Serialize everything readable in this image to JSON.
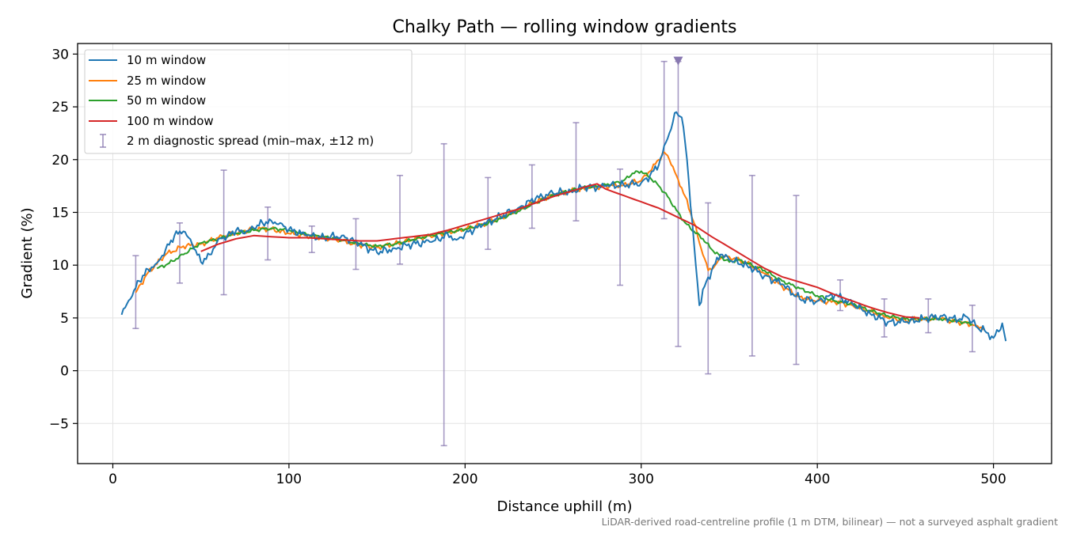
{
  "chart_data": {
    "type": "line",
    "title": "Chalky Path — rolling window gradients",
    "xlabel": "Distance uphill (m)",
    "ylabel": "Gradient (%)",
    "xlim": [
      -20,
      533
    ],
    "ylim": [
      -8.8,
      31
    ],
    "x_ticks": [
      0,
      100,
      200,
      300,
      400,
      500
    ],
    "y_ticks": [
      -5,
      0,
      5,
      10,
      15,
      20,
      25,
      30
    ],
    "grid": true,
    "legend_position": "top-left",
    "footnote": "LiDAR-derived road-centreline profile (1 m DTM, bilinear) — not a surveyed asphalt gradient",
    "marker": {
      "x": 321,
      "y": 29.3,
      "shape": "triangle-down",
      "color": "#8878b0"
    },
    "series": [
      {
        "name": "10 m window",
        "color": "#1f77b4",
        "width": 2.0,
        "jitter": true,
        "x": [
          5,
          10,
          15,
          20,
          25,
          30,
          35,
          40,
          45,
          50,
          55,
          60,
          65,
          70,
          75,
          80,
          85,
          90,
          95,
          100,
          110,
          120,
          130,
          140,
          150,
          160,
          170,
          180,
          185,
          190,
          195,
          200,
          210,
          220,
          230,
          240,
          250,
          260,
          270,
          275,
          280,
          290,
          300,
          305,
          310,
          315,
          320,
          323,
          326,
          330,
          333,
          336,
          340,
          345,
          350,
          360,
          370,
          380,
          390,
          400,
          410,
          420,
          430,
          440,
          450,
          460,
          470,
          480,
          485,
          490,
          495,
          500,
          505,
          507
        ],
        "y": [
          5.3,
          6.8,
          8.5,
          9.6,
          10.2,
          11.5,
          12.8,
          13.2,
          12.0,
          10.3,
          11.0,
          12.5,
          12.8,
          13.3,
          13.0,
          13.5,
          14.0,
          14.2,
          14.0,
          13.4,
          12.8,
          12.6,
          12.8,
          12.0,
          11.2,
          11.6,
          12.0,
          12.2,
          12.4,
          13.0,
          12.4,
          13.0,
          13.8,
          14.6,
          15.4,
          16.3,
          16.8,
          17.0,
          17.5,
          17.3,
          17.5,
          17.6,
          17.8,
          18.5,
          19.5,
          22.0,
          24.5,
          24.0,
          20.0,
          12.0,
          6.2,
          8.0,
          9.5,
          11.0,
          10.5,
          10.0,
          9.0,
          8.2,
          6.8,
          6.6,
          7.2,
          6.3,
          5.4,
          4.6,
          4.6,
          4.9,
          5.2,
          4.8,
          5.1,
          4.2,
          3.8,
          3.1,
          4.5,
          2.8
        ]
      },
      {
        "name": "25 m window",
        "color": "#ff7f0e",
        "width": 2.0,
        "jitter": true,
        "x": [
          13,
          20,
          30,
          40,
          50,
          60,
          70,
          80,
          90,
          100,
          110,
          120,
          130,
          140,
          150,
          160,
          170,
          180,
          190,
          200,
          210,
          220,
          230,
          240,
          250,
          260,
          270,
          280,
          290,
          300,
          305,
          310,
          313,
          316,
          320,
          325,
          330,
          335,
          338,
          342,
          346,
          350,
          360,
          370,
          380,
          390,
          400,
          410,
          420,
          430,
          440,
          450,
          460,
          470,
          480,
          490,
          495
        ],
        "y": [
          7.4,
          9.3,
          11.0,
          11.8,
          12.0,
          12.6,
          13.0,
          13.5,
          13.4,
          13.0,
          12.8,
          12.6,
          12.3,
          11.9,
          11.7,
          12.0,
          12.4,
          12.8,
          13.1,
          13.4,
          13.9,
          14.5,
          15.2,
          16.0,
          16.7,
          17.0,
          17.3,
          17.5,
          17.6,
          18.0,
          18.9,
          20.0,
          20.7,
          20.0,
          18.5,
          16.5,
          14.0,
          11.0,
          9.5,
          10.0,
          10.8,
          10.8,
          10.2,
          9.2,
          8.0,
          7.0,
          6.6,
          6.5,
          6.2,
          5.6,
          5.0,
          4.8,
          4.9,
          4.9,
          4.6,
          4.3,
          4.0
        ]
      },
      {
        "name": "50 m window",
        "color": "#2ca02c",
        "width": 2.0,
        "jitter": true,
        "x": [
          25,
          30,
          40,
          50,
          60,
          70,
          80,
          90,
          100,
          110,
          120,
          130,
          140,
          150,
          160,
          170,
          180,
          190,
          200,
          210,
          220,
          230,
          240,
          250,
          260,
          270,
          280,
          290,
          295,
          300,
          305,
          310,
          315,
          320,
          325,
          330,
          335,
          340,
          345,
          350,
          355,
          360,
          370,
          380,
          390,
          400,
          410,
          420,
          430,
          440,
          450,
          460,
          470,
          480,
          488
        ],
        "y": [
          9.7,
          10.0,
          11.0,
          12.1,
          12.5,
          13.0,
          13.3,
          13.5,
          13.3,
          12.9,
          12.7,
          12.4,
          12.0,
          11.8,
          12.0,
          12.4,
          12.8,
          13.1,
          13.4,
          13.8,
          14.4,
          15.1,
          15.9,
          16.6,
          17.1,
          17.4,
          17.6,
          18.0,
          18.7,
          18.9,
          18.3,
          17.5,
          16.5,
          15.2,
          14.0,
          13.2,
          12.5,
          11.5,
          10.8,
          10.3,
          10.5,
          10.2,
          9.5,
          8.5,
          7.8,
          7.1,
          6.6,
          6.3,
          5.7,
          5.2,
          4.9,
          4.9,
          4.9,
          4.7,
          4.4
        ]
      },
      {
        "name": "100 m window",
        "color": "#d62728",
        "width": 2.0,
        "jitter": false,
        "x": [
          50,
          60,
          70,
          80,
          90,
          100,
          110,
          120,
          130,
          140,
          150,
          160,
          170,
          180,
          190,
          200,
          210,
          220,
          230,
          240,
          250,
          260,
          270,
          275,
          280,
          290,
          300,
          310,
          320,
          330,
          340,
          350,
          360,
          370,
          380,
          390,
          400,
          410,
          420,
          430,
          440,
          450,
          458
        ],
        "y": [
          11.3,
          12.0,
          12.5,
          12.8,
          12.7,
          12.6,
          12.6,
          12.5,
          12.4,
          12.3,
          12.3,
          12.5,
          12.7,
          12.9,
          13.3,
          13.8,
          14.3,
          14.8,
          15.3,
          15.9,
          16.5,
          17.0,
          17.5,
          17.7,
          17.2,
          16.6,
          16.0,
          15.4,
          14.6,
          13.8,
          12.7,
          11.7,
          10.7,
          9.7,
          8.9,
          8.4,
          7.9,
          7.2,
          6.6,
          6.0,
          5.5,
          5.1,
          5.0
        ]
      }
    ],
    "errorbars": {
      "name": "2 m diagnostic spread (min–max, ±12 m)",
      "color": "#8878b0",
      "points": [
        {
          "x": 13,
          "low": 4.0,
          "high": 10.9
        },
        {
          "x": 38,
          "low": 8.3,
          "high": 14.0
        },
        {
          "x": 63,
          "low": 7.2,
          "high": 19.0
        },
        {
          "x": 88,
          "low": 10.5,
          "high": 15.5
        },
        {
          "x": 113,
          "low": 11.2,
          "high": 13.7
        },
        {
          "x": 138,
          "low": 9.6,
          "high": 14.4
        },
        {
          "x": 163,
          "low": 10.1,
          "high": 18.5
        },
        {
          "x": 188,
          "low": -7.1,
          "high": 21.5
        },
        {
          "x": 213,
          "low": 11.5,
          "high": 18.3
        },
        {
          "x": 238,
          "low": 13.5,
          "high": 19.5
        },
        {
          "x": 263,
          "low": 14.2,
          "high": 23.5
        },
        {
          "x": 288,
          "low": 8.1,
          "high": 19.1
        },
        {
          "x": 313,
          "low": 14.4,
          "high": 29.3
        },
        {
          "x": 321,
          "low": 2.3,
          "high": 29.3
        },
        {
          "x": 338,
          "low": -0.3,
          "high": 15.9
        },
        {
          "x": 363,
          "low": 1.4,
          "high": 18.5
        },
        {
          "x": 388,
          "low": 0.6,
          "high": 16.6
        },
        {
          "x": 413,
          "low": 5.7,
          "high": 8.6
        },
        {
          "x": 438,
          "low": 3.2,
          "high": 6.8
        },
        {
          "x": 463,
          "low": 3.6,
          "high": 6.8
        },
        {
          "x": 488,
          "low": 1.8,
          "high": 6.2
        }
      ]
    }
  }
}
